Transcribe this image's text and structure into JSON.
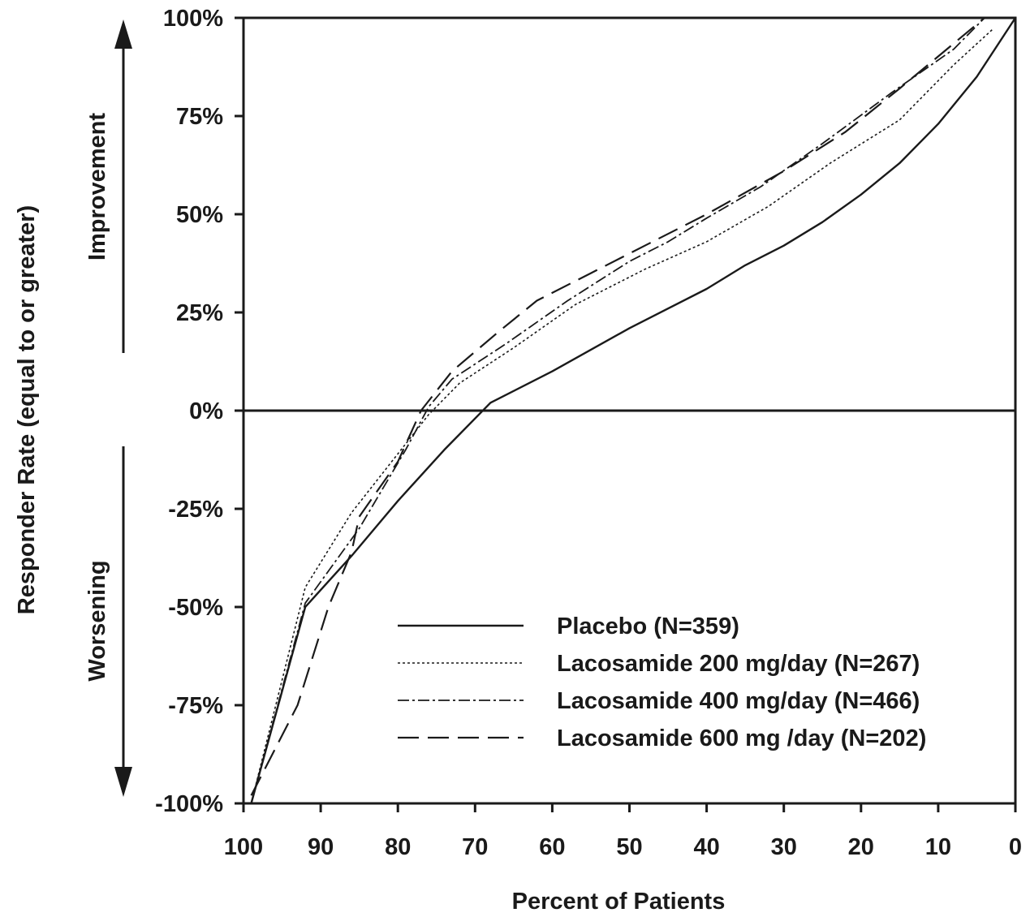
{
  "chart_data": {
    "type": "line",
    "title": "",
    "xlabel": "Percent of Patients",
    "ylabel": "Responder Rate (equal to or greater)",
    "xlim": [
      100,
      0
    ],
    "ylim": [
      -100,
      100
    ],
    "x_ticks": [
      100,
      90,
      80,
      70,
      60,
      50,
      40,
      30,
      20,
      10,
      0
    ],
    "x_tick_labels": [
      "100",
      "90",
      "80",
      "70",
      "60",
      "50",
      "40",
      "30",
      "20",
      "10",
      "0"
    ],
    "y_ticks": [
      100,
      75,
      50,
      25,
      0,
      -25,
      -50,
      -75,
      -100
    ],
    "y_tick_labels": [
      "100%",
      "75%",
      "50%",
      "25%",
      "0%",
      "-25%",
      "-50%",
      "-75%",
      "-100%"
    ],
    "zero_line": true,
    "grid": false,
    "legend_position": "bottom-right",
    "annotations": {
      "improvement": "Improvement",
      "worsening": "Worsening"
    },
    "series": [
      {
        "name": "Placebo (N=359)",
        "style": "solid",
        "x": [
          99,
          92,
          86,
          80,
          74,
          68,
          60,
          50,
          40,
          35,
          30,
          25,
          20,
          15,
          10,
          5,
          0
        ],
        "y": [
          -100,
          -50,
          -37,
          -23,
          -10,
          2,
          10,
          21,
          31,
          37,
          42,
          48,
          55,
          63,
          73,
          85,
          100
        ]
      },
      {
        "name": "Lacosamide 200 mg/day (N=267)",
        "style": "dotted",
        "x": [
          99,
          92,
          86,
          80,
          76,
          72,
          65,
          57,
          48,
          40,
          32,
          24,
          15,
          8,
          3
        ],
        "y": [
          -100,
          -45,
          -26,
          -11,
          -1,
          7,
          16,
          27,
          36,
          43,
          52,
          63,
          74,
          88,
          97
        ]
      },
      {
        "name": "Lacosamide 400 mg/day (N=466)",
        "style": "dash-dot",
        "x": [
          99,
          92,
          85,
          79,
          76,
          73,
          66,
          58,
          50,
          45,
          40,
          33,
          25,
          16,
          8,
          4
        ],
        "y": [
          -100,
          -49,
          -30,
          -10,
          1,
          8,
          17,
          28,
          38,
          43,
          49,
          57,
          68,
          81,
          92,
          100
        ]
      },
      {
        "name": "Lacosamide 600 mg /day (N=202)",
        "style": "dashed",
        "x": [
          99,
          93,
          89,
          86,
          85,
          80,
          77,
          73,
          67,
          62,
          55,
          48,
          40,
          30,
          22,
          15,
          4
        ],
        "y": [
          -98,
          -75,
          -50,
          -36,
          -27,
          -13,
          0,
          10,
          20,
          28,
          35,
          42,
          50,
          61,
          71,
          82,
          100
        ]
      }
    ]
  }
}
